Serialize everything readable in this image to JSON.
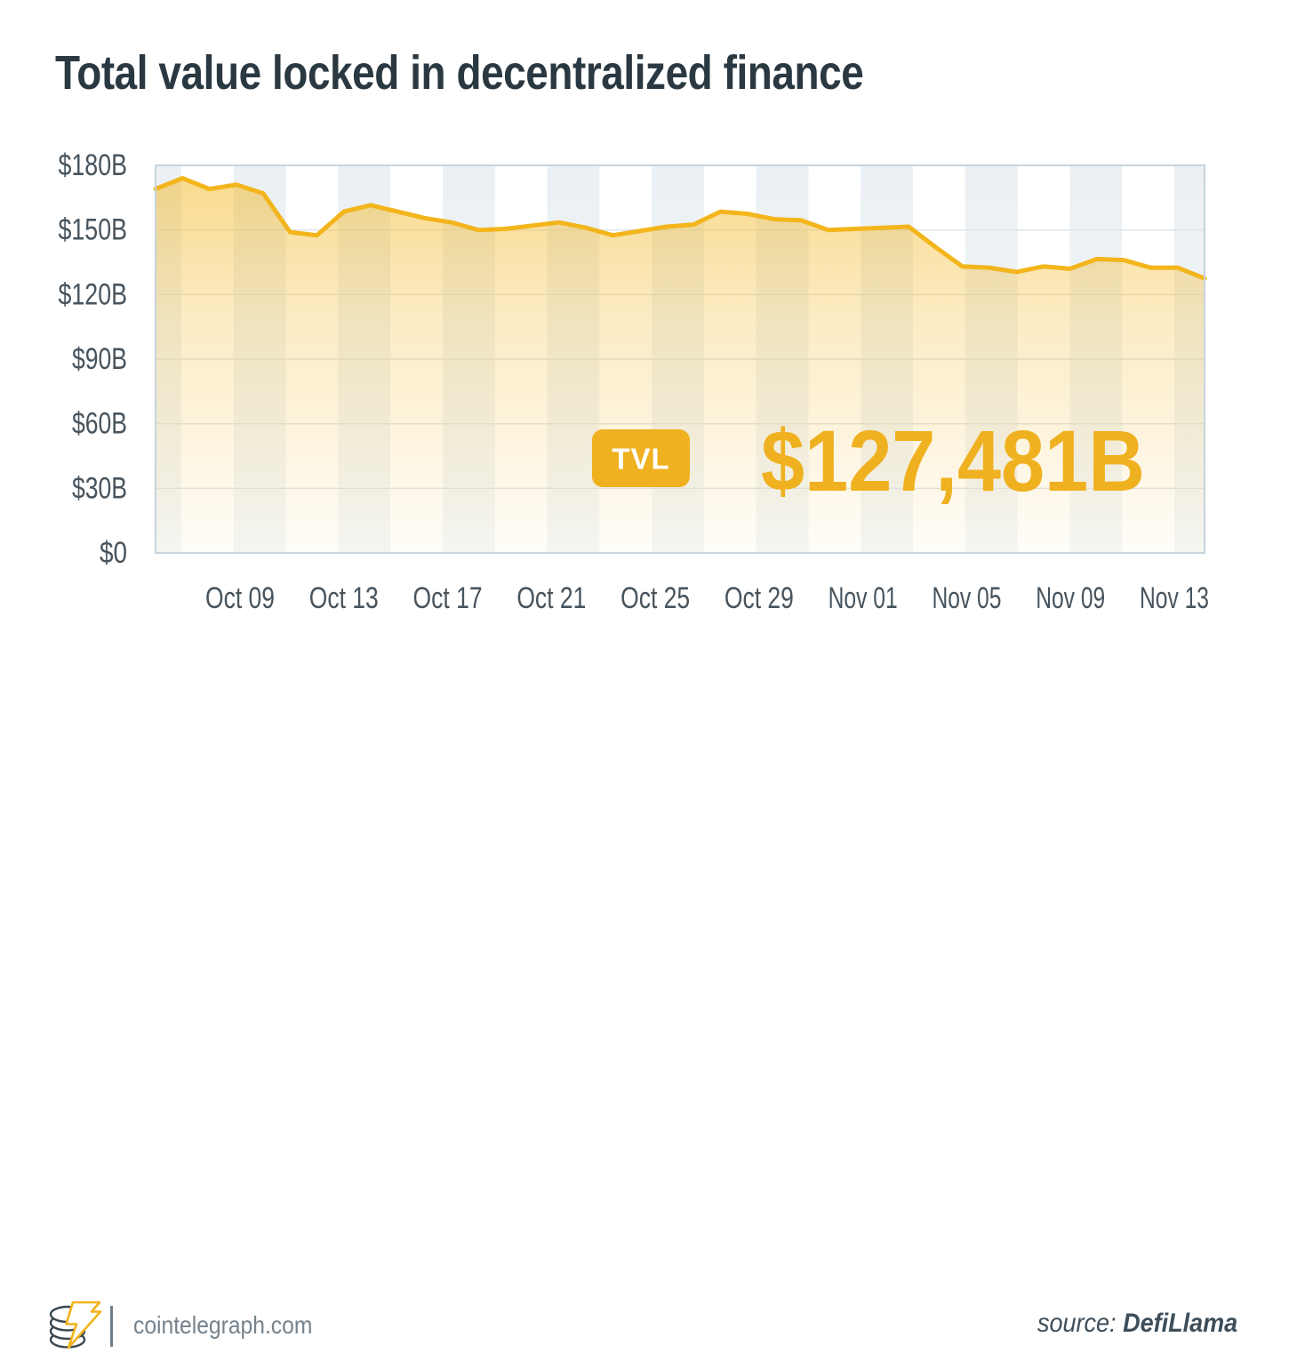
{
  "title": "Total value locked in decentralized finance",
  "chart_data": {
    "type": "area",
    "title": "Total value locked in decentralized finance",
    "xlabel": "",
    "ylabel": "",
    "ylim": [
      0,
      180
    ],
    "grid": "horizontal",
    "legend": "none",
    "background": "striped-vertical",
    "y_ticks": [
      180,
      150,
      120,
      90,
      60,
      30,
      0
    ],
    "y_tick_labels": [
      "$180B",
      "$150B",
      "$120B",
      "$90B",
      "$60B",
      "$30B",
      "$0"
    ],
    "x_tick_labels": [
      "Oct 09",
      "Oct 13",
      "Oct 17",
      "Oct 21",
      "Oct 25",
      "Oct 29",
      "Nov 01",
      "Nov 05",
      "Nov 09",
      "Nov 13"
    ],
    "series_name": "TVL",
    "dates": [
      "Oct 06",
      "Oct 07",
      "Oct 08",
      "Oct 09",
      "Oct 10",
      "Oct 11",
      "Oct 12",
      "Oct 13",
      "Oct 14",
      "Oct 15",
      "Oct 16",
      "Oct 17",
      "Oct 18",
      "Oct 19",
      "Oct 20",
      "Oct 21",
      "Oct 22",
      "Oct 23",
      "Oct 24",
      "Oct 25",
      "Oct 26",
      "Oct 27",
      "Oct 28",
      "Oct 29",
      "Oct 30",
      "Oct 31",
      "Nov 01",
      "Nov 02",
      "Nov 03",
      "Nov 04",
      "Nov 05",
      "Nov 06",
      "Nov 07",
      "Nov 08",
      "Nov 09",
      "Nov 10",
      "Nov 11",
      "Nov 12",
      "Nov 13",
      "Nov 14"
    ],
    "values": [
      169,
      174,
      169,
      171,
      167,
      149,
      147.5,
      158.5,
      161.5,
      158.5,
      155.5,
      153.5,
      150,
      150.5,
      152,
      153.5,
      151,
      147.5,
      149.5,
      151.5,
      152.5,
      158.5,
      157.5,
      155,
      154.5,
      150,
      150.5,
      151,
      151.5,
      142,
      133,
      132.5,
      130.5,
      133,
      132,
      136.5,
      136,
      132.5,
      132.5,
      127.5
    ],
    "annotation": {
      "badge_label": "TVL",
      "value_display": "$127,481B"
    }
  },
  "footer": {
    "brand": "cointelegraph.com",
    "source_label": "source:",
    "source_name": "DefiLlama"
  },
  "colors": {
    "accent": "#F0B120",
    "line": "#F3B51C",
    "fill_base": "#F3B51C",
    "title_text": "#2A3842",
    "axis_text": "#47545E",
    "stripe_top": "#EBF0F4",
    "stripe_bottom": "#F4F7F9",
    "grid": "#DCE4E9",
    "plot_border": "#C8D4DC",
    "badge_text": "#FFFFFF",
    "brand_text": "#75828C",
    "source_text": "#3D4E5A",
    "logo_dark": "#3A4750",
    "logo_bolt": "#F2B31C"
  }
}
